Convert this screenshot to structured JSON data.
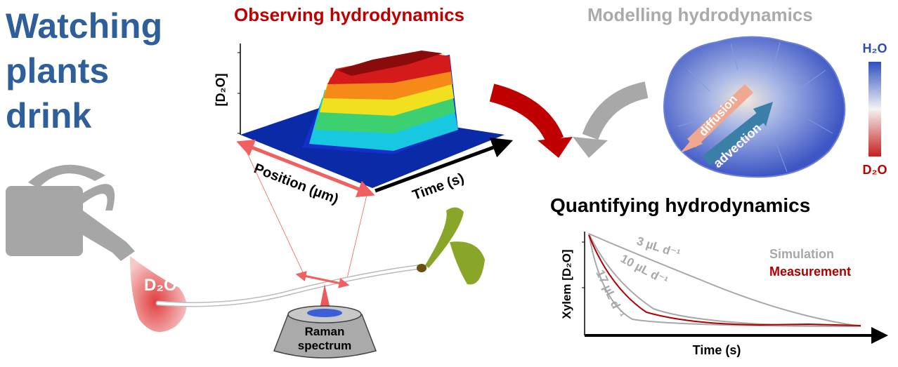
{
  "title": {
    "lines": [
      "Watching",
      "plants",
      "drink"
    ]
  },
  "observing": {
    "heading": "Observing hydrodynamics",
    "y_label": "[D₂O]",
    "position_label": "Position (µm)",
    "time_label": "Time (s)"
  },
  "modelling": {
    "heading": "Modelling hydrodynamics",
    "top_label": "H₂O",
    "bottom_label": "D₂O",
    "diffusion": "diffusion",
    "advection": "advection"
  },
  "quantifying": {
    "heading": "Quantifying hydrodynamics",
    "y_label": "Xylem [D₂O]",
    "x_label": "Time (s)",
    "curves": [
      "3 µL d⁻¹",
      "10 µL d⁻¹",
      "17 µL d⁻¹"
    ],
    "legend": [
      "Simulation",
      "Measurement"
    ]
  },
  "droplet": "D₂O",
  "raman": [
    "Raman",
    "spectrum"
  ]
}
